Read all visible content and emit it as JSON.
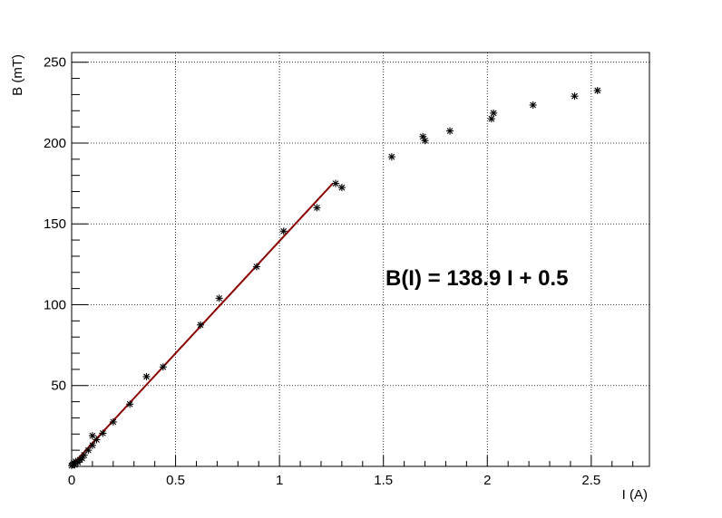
{
  "chart_data": {
    "type": "scatter",
    "xlabel": "I (A)",
    "ylabel": "B (mT)",
    "xlim": [
      0,
      2.78
    ],
    "ylim": [
      0,
      256
    ],
    "x_ticks": [
      0,
      0.5,
      1,
      1.5,
      2,
      2.5
    ],
    "x_tick_labels": [
      "0",
      "0.5",
      "1",
      "1.5",
      "2",
      "2.5"
    ],
    "y_ticks": [
      50,
      100,
      150,
      200,
      250
    ],
    "y_tick_labels": [
      "50",
      "100",
      "150",
      "200",
      "250"
    ],
    "grid": true,
    "series": [
      {
        "marker": "star",
        "color": "#000000",
        "points": [
          [
            0.0,
            0.5
          ],
          [
            0.005,
            1.2
          ],
          [
            0.01,
            2.0
          ],
          [
            0.015,
            1.0
          ],
          [
            0.02,
            3.0
          ],
          [
            0.03,
            2.5
          ],
          [
            0.04,
            4.0
          ],
          [
            0.05,
            5.0
          ],
          [
            0.06,
            7.0
          ],
          [
            0.08,
            10.0
          ],
          [
            0.1,
            13.0
          ],
          [
            0.1,
            19.0
          ],
          [
            0.12,
            16.5
          ],
          [
            0.15,
            20.5
          ],
          [
            0.2,
            27.5
          ],
          [
            0.28,
            38.5
          ],
          [
            0.36,
            55.5
          ],
          [
            0.44,
            61.5
          ],
          [
            0.62,
            87.5
          ],
          [
            0.71,
            104.0
          ],
          [
            0.89,
            123.5
          ],
          [
            1.02,
            145.5
          ],
          [
            1.18,
            160.0
          ],
          [
            1.27,
            175.0
          ],
          [
            1.3,
            172.5
          ],
          [
            1.54,
            191.5
          ],
          [
            1.69,
            204.0
          ],
          [
            1.7,
            201.5
          ],
          [
            1.82,
            207.5
          ],
          [
            2.02,
            215.0
          ],
          [
            2.03,
            218.5
          ],
          [
            2.22,
            223.5
          ],
          [
            2.42,
            229.0
          ],
          [
            2.53,
            232.5
          ]
        ]
      }
    ],
    "fit": {
      "color": "#8b0000",
      "slope": 138.9,
      "intercept": 0.5,
      "x_range": [
        0,
        1.255
      ]
    },
    "annotation": "B(I) = 138.9 I + 0.5"
  }
}
